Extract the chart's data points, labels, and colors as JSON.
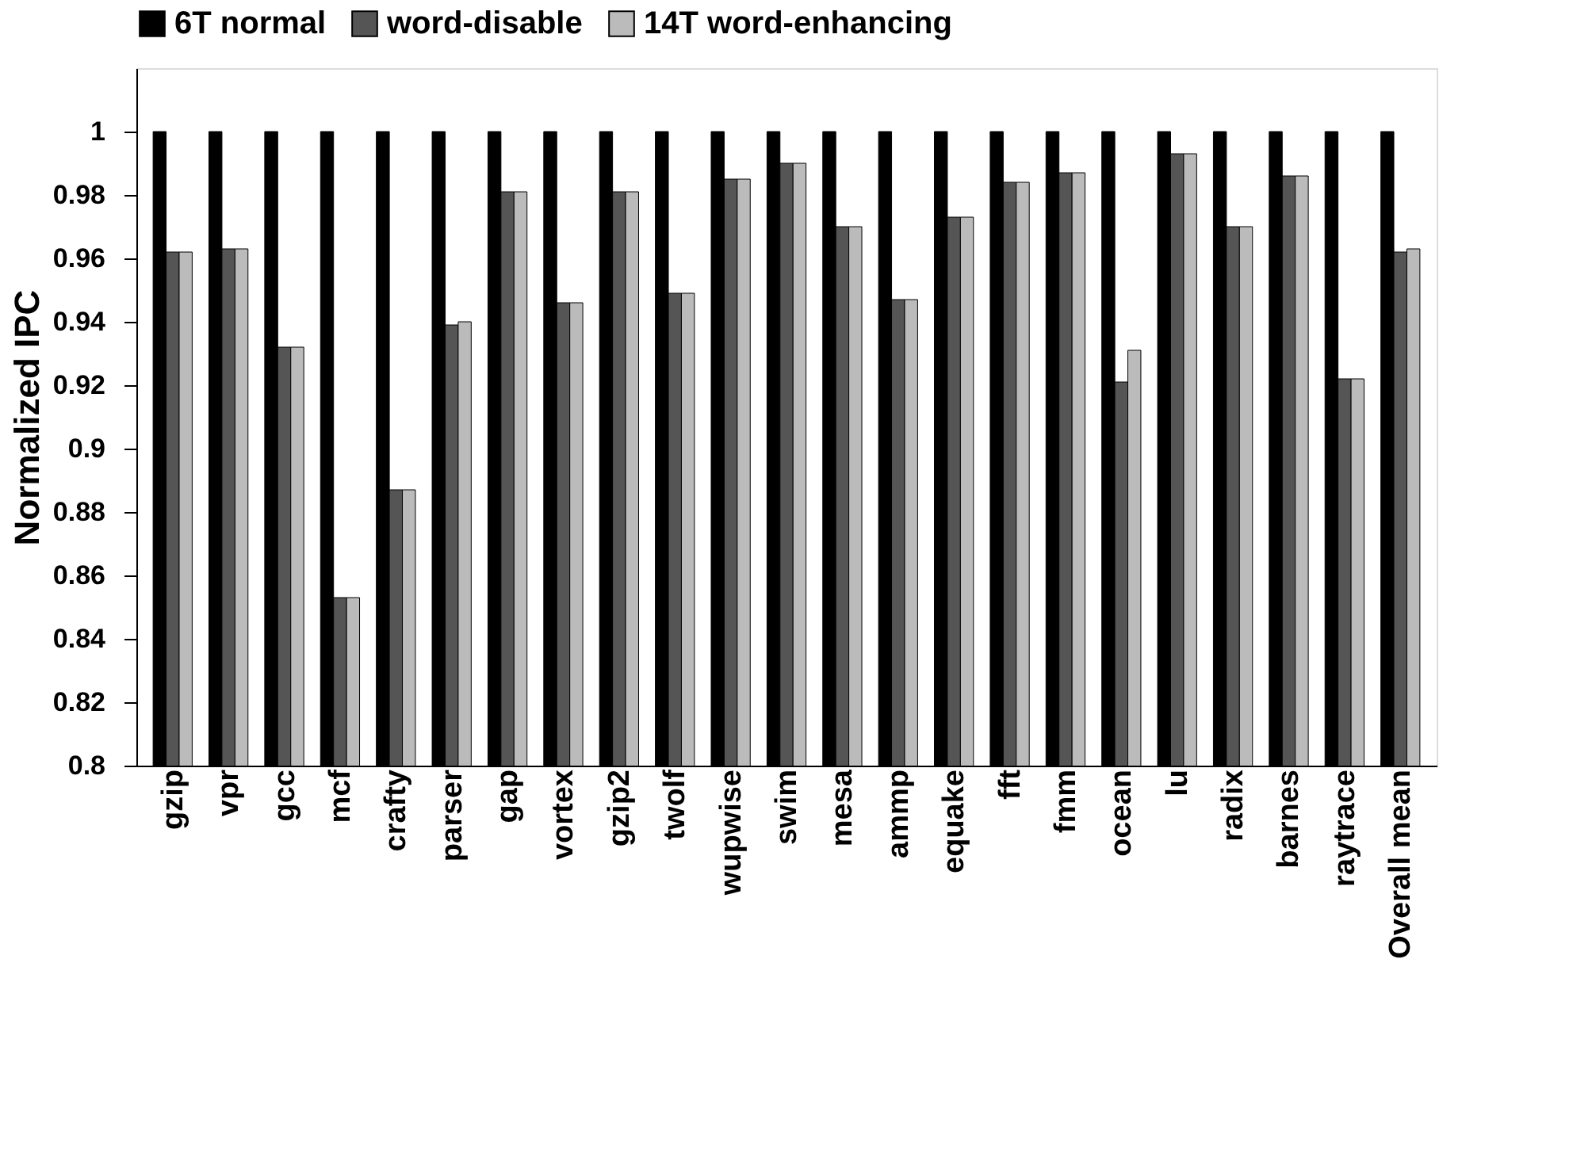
{
  "chart_data": {
    "type": "bar",
    "ylabel": "Normalized IPC",
    "categories": [
      "gzip",
      "vpr",
      "gcc",
      "mcf",
      "crafty",
      "parser",
      "gap",
      "vortex",
      "gzip2",
      "twolf",
      "wupwise",
      "swim",
      "mesa",
      "ammp",
      "equake",
      "fft",
      "fmm",
      "ocean",
      "lu",
      "radix",
      "barnes",
      "raytrace",
      "Overall mean"
    ],
    "series": [
      {
        "name": "6T normal",
        "color": "#000000",
        "values": [
          1,
          1,
          1,
          1,
          1,
          1,
          1,
          1,
          1,
          1,
          1,
          1,
          1,
          1,
          1,
          1,
          1,
          1,
          1,
          1,
          1,
          1,
          1
        ]
      },
      {
        "name": "word-disable",
        "color": "#555555",
        "values": [
          0.962,
          0.963,
          0.932,
          0.853,
          0.887,
          0.939,
          0.981,
          0.946,
          0.981,
          0.949,
          0.985,
          0.99,
          0.97,
          0.947,
          0.973,
          0.984,
          0.987,
          0.921,
          0.993,
          0.97,
          0.986,
          0.922,
          0.962
        ]
      },
      {
        "name": "14T word-enhancing",
        "color": "#bbbbbb",
        "values": [
          0.962,
          0.963,
          0.932,
          0.853,
          0.887,
          0.94,
          0.981,
          0.946,
          0.981,
          0.949,
          0.985,
          0.99,
          0.97,
          0.947,
          0.973,
          0.984,
          0.987,
          0.931,
          0.993,
          0.97,
          0.986,
          0.922,
          0.963
        ]
      }
    ],
    "ylim": [
      0.8,
      1.02
    ],
    "yticks": [
      {
        "value": 0.8,
        "label": "0.8"
      },
      0.82,
      0.84,
      0.86,
      0.88,
      {
        "value": 0.9,
        "label": "0.9"
      },
      0.92,
      0.94,
      0.96,
      0.98,
      {
        "value": 1,
        "label": "1"
      }
    ],
    "grid": false,
    "legend": "top"
  }
}
